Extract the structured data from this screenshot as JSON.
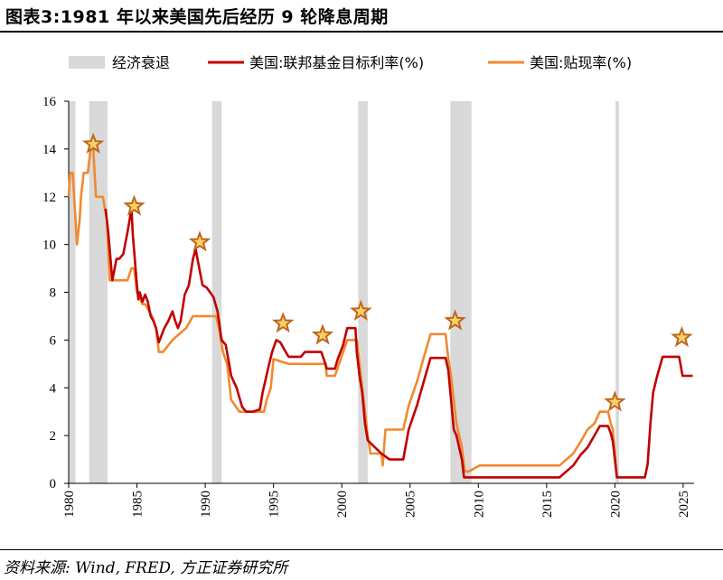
{
  "header": {
    "title": "图表3:1981 年以来美国先后经历 9 轮降息周期"
  },
  "footer": {
    "source": "资料来源: Wind, FRED, 方正证券研究所"
  },
  "chart_data": {
    "type": "line",
    "xlim": [
      1980,
      2025.8
    ],
    "ylim": [
      0,
      16
    ],
    "yticks": [
      0,
      2,
      4,
      6,
      8,
      10,
      12,
      14,
      16
    ],
    "xticks": [
      1980,
      1985,
      1990,
      1995,
      2000,
      2005,
      2010,
      2015,
      2020,
      2025
    ],
    "legend": {
      "placement": "top",
      "recession_label": "经济衰退",
      "items": [
        "美国:联邦基金目标利率(%)",
        "美国:贴现率(%)"
      ]
    },
    "colors": {
      "fed_funds": "#c00000",
      "discount": "#f08a30",
      "recession": "#d9d9d9",
      "star": "#c0651c"
    },
    "recessions": [
      [
        1980.0,
        1980.5
      ],
      [
        1981.5,
        1982.85
      ],
      [
        1990.5,
        1991.2
      ],
      [
        2001.2,
        2001.9
      ],
      [
        2007.95,
        2009.5
      ],
      [
        2020.05,
        2020.3
      ]
    ],
    "series": [
      {
        "name": "美国:联邦基金目标利率(%)",
        "x": [
          1982.7,
          1982.9,
          1983.2,
          1983.5,
          1983.7,
          1984.0,
          1984.3,
          1984.6,
          1984.7,
          1984.9,
          1985.0,
          1985.1,
          1985.2,
          1985.4,
          1985.6,
          1985.8,
          1986.0,
          1986.2,
          1986.4,
          1986.6,
          1987.0,
          1987.3,
          1987.6,
          1987.8,
          1988.0,
          1988.2,
          1988.5,
          1988.8,
          1989.1,
          1989.3,
          1989.5,
          1989.8,
          1990.1,
          1990.6,
          1990.9,
          1991.2,
          1991.5,
          1991.9,
          1992.3,
          1992.7,
          1993.0,
          1993.5,
          1994.0,
          1994.2,
          1994.4,
          1994.6,
          1994.9,
          1995.2,
          1995.5,
          1995.9,
          1996.1,
          1997.0,
          1997.3,
          1998.5,
          1998.8,
          1998.9,
          1999.5,
          1999.7,
          1999.9,
          2000.1,
          2000.4,
          2001.0,
          2001.1,
          2001.3,
          2001.5,
          2001.7,
          2001.9,
          2002.9,
          2003.5,
          2004.5,
          2004.9,
          2005.5,
          2006.0,
          2006.5,
          2007.6,
          2007.8,
          2008.0,
          2008.2,
          2008.4,
          2008.8,
          2008.95,
          2015.95,
          2016.95,
          2017.5,
          2018.0,
          2018.5,
          2018.9,
          2019.5,
          2019.7,
          2019.85,
          2020.15,
          2022.2,
          2022.4,
          2022.6,
          2022.8,
          2023.1,
          2023.5,
          2024.7,
          2024.8,
          2024.95,
          2025.7
        ],
        "values": [
          11.5,
          10.5,
          8.5,
          9.4,
          9.4,
          9.6,
          10.5,
          11.5,
          10.4,
          9.0,
          8.3,
          7.7,
          8.0,
          7.6,
          7.9,
          7.6,
          7.0,
          6.8,
          6.5,
          5.9,
          6.5,
          6.8,
          7.2,
          6.8,
          6.5,
          6.8,
          7.9,
          8.3,
          9.4,
          9.8,
          9.2,
          8.3,
          8.2,
          7.8,
          7.2,
          6.0,
          5.8,
          4.5,
          4.0,
          3.2,
          3.0,
          3.0,
          3.1,
          3.8,
          4.3,
          4.8,
          5.5,
          6.0,
          5.9,
          5.5,
          5.3,
          5.3,
          5.5,
          5.5,
          5.0,
          4.8,
          4.8,
          5.2,
          5.5,
          5.8,
          6.5,
          6.5,
          5.5,
          4.5,
          3.8,
          2.5,
          1.8,
          1.25,
          1.0,
          1.0,
          2.25,
          3.25,
          4.25,
          5.25,
          5.25,
          4.75,
          3.5,
          2.25,
          2.0,
          1.0,
          0.25,
          0.25,
          0.75,
          1.2,
          1.5,
          2.0,
          2.4,
          2.4,
          2.1,
          1.75,
          0.25,
          0.25,
          0.8,
          2.5,
          3.8,
          4.5,
          5.3,
          5.3,
          5.0,
          4.5,
          4.5
        ]
      },
      {
        "name": "美国:贴现率(%)",
        "x": [
          1980.0,
          1980.1,
          1980.3,
          1980.5,
          1980.6,
          1980.8,
          1980.9,
          1981.1,
          1981.4,
          1981.6,
          1981.8,
          1982.0,
          1982.5,
          1982.8,
          1983.0,
          1983.8,
          1984.3,
          1984.6,
          1984.8,
          1985.0,
          1985.4,
          1985.6,
          1986.1,
          1986.4,
          1986.6,
          1986.9,
          1987.6,
          1988.6,
          1989.1,
          1989.3,
          1990.8,
          1991.0,
          1991.3,
          1991.6,
          1991.9,
          1992.5,
          1994.3,
          1994.5,
          1994.8,
          1995.0,
          1996.1,
          1998.8,
          1998.9,
          1999.5,
          1999.8,
          2000.1,
          2000.4,
          2001.1,
          2001.3,
          2001.5,
          2001.7,
          2001.9,
          2002.1,
          2002.9,
          2003.0,
          2003.2,
          2003.4,
          2004.5,
          2004.9,
          2005.5,
          2006.0,
          2006.5,
          2007.6,
          2007.8,
          2008.0,
          2008.2,
          2008.4,
          2008.8,
          2009.0,
          2009.3,
          2010.1,
          2015.95,
          2016.95,
          2017.5,
          2018.0,
          2018.5,
          2018.9,
          2019.5,
          2019.7,
          2019.85,
          2020.15,
          2020.25
        ],
        "values": [
          12,
          13,
          13,
          11,
          10,
          11,
          12,
          13,
          13,
          14,
          14,
          12,
          12,
          11,
          8.5,
          8.5,
          8.5,
          9,
          9,
          8,
          7.5,
          7.5,
          7,
          6.5,
          5.5,
          5.5,
          6,
          6.5,
          7,
          7,
          7,
          6.5,
          5.5,
          5,
          3.5,
          3,
          3,
          3.5,
          4,
          5.2,
          5,
          5,
          4.5,
          4.5,
          5,
          5.5,
          6,
          6,
          5,
          4,
          3,
          2,
          1.25,
          1.25,
          0.75,
          2.25,
          2.25,
          2.25,
          3.25,
          4.25,
          5.25,
          6.25,
          6.25,
          5.25,
          4.5,
          3.5,
          2.5,
          1.5,
          0.5,
          0.5,
          0.75,
          0.75,
          1.25,
          1.75,
          2.25,
          2.5,
          3.0,
          3.0,
          2.5,
          2.25,
          0.25,
          0.25
        ]
      }
    ],
    "stars": [
      {
        "x": 1981.8,
        "y": 14.2
      },
      {
        "x": 1984.8,
        "y": 11.6
      },
      {
        "x": 1989.6,
        "y": 10.1
      },
      {
        "x": 1995.7,
        "y": 6.7
      },
      {
        "x": 1998.6,
        "y": 6.2
      },
      {
        "x": 2001.4,
        "y": 7.2
      },
      {
        "x": 2008.3,
        "y": 6.8
      },
      {
        "x": 2020.0,
        "y": 3.4
      },
      {
        "x": 2024.9,
        "y": 6.1
      }
    ]
  }
}
